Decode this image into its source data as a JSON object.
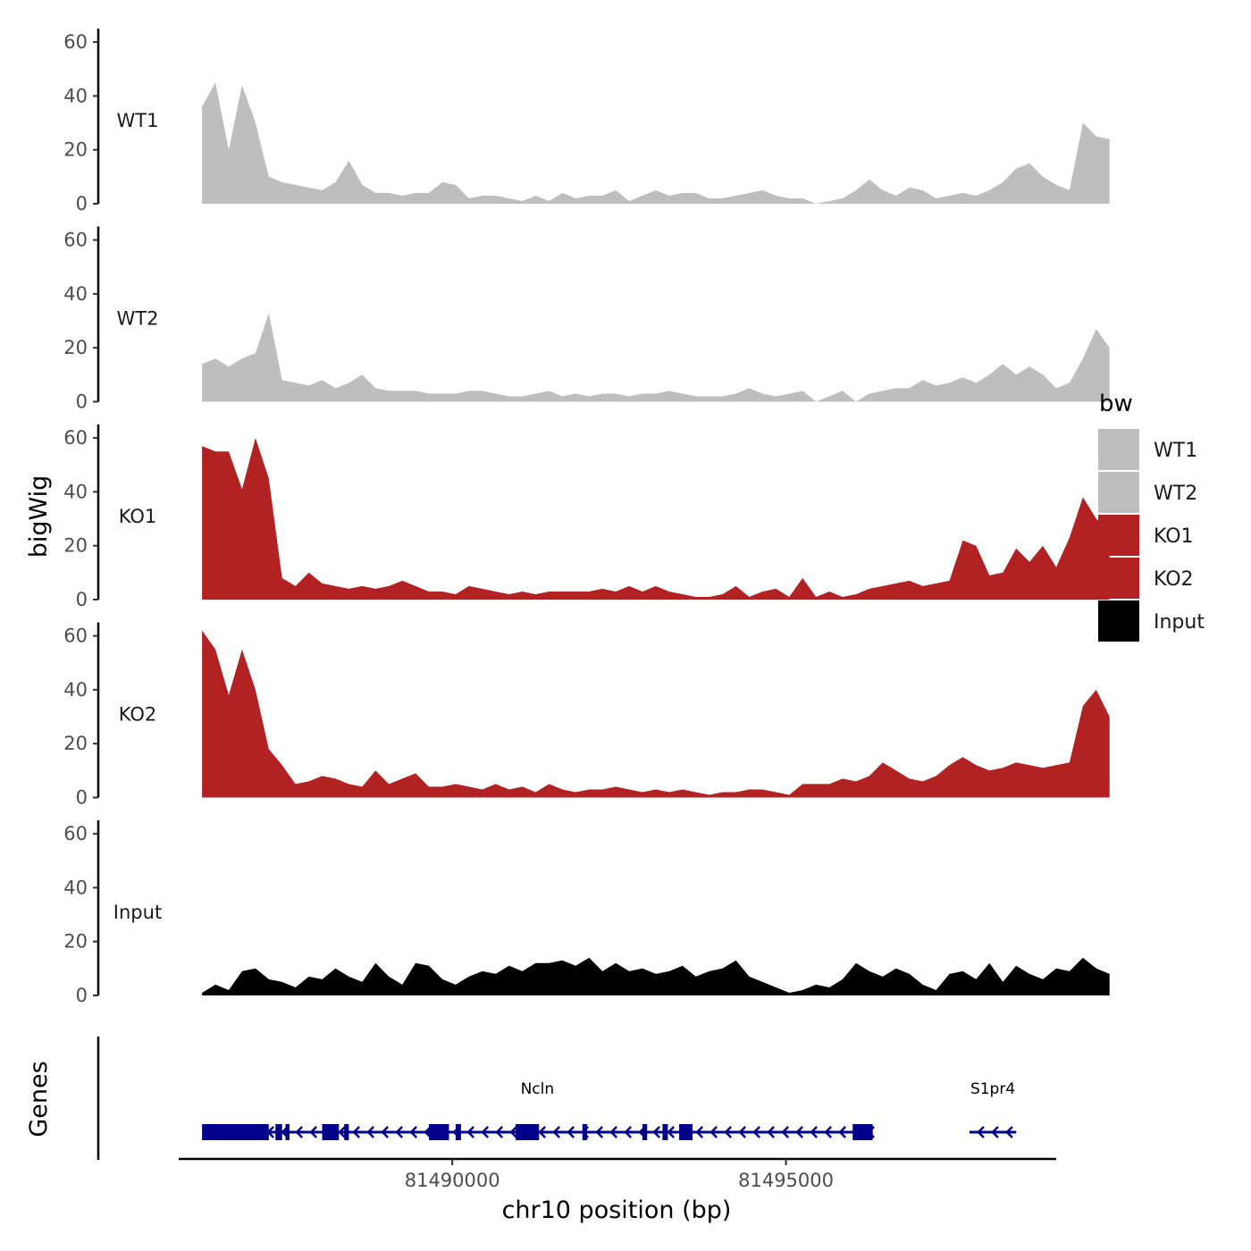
{
  "chart_data": {
    "type": "area",
    "chromosome": "chr10",
    "xlabel": "chr10 position (bp)",
    "ylabel": "bigWig",
    "genes_label": "Genes",
    "xlim": [
      81485900,
      81499050
    ],
    "x_ticks": [
      81490000,
      81495000
    ],
    "x_tick_labels": [
      "81490000",
      "81495000"
    ],
    "ylim": [
      0,
      65
    ],
    "y_ticks": [
      0,
      20,
      40,
      60
    ],
    "grid": false,
    "legend": {
      "title": "bw",
      "position": "right",
      "entries": [
        {
          "label": "WT1",
          "color": "#bebebe"
        },
        {
          "label": "WT2",
          "color": "#bebebe"
        },
        {
          "label": "KO1",
          "color": "#b22222"
        },
        {
          "label": "KO2",
          "color": "#b22222"
        },
        {
          "label": "Input",
          "color": "#000000"
        }
      ]
    },
    "track_x": {
      "start": 81486250,
      "step": 200
    },
    "tracks": [
      {
        "name": "WT1",
        "color": "#bebebe",
        "values": [
          36,
          45,
          20,
          44,
          30,
          10,
          8,
          7,
          6,
          5,
          8,
          16,
          7,
          4,
          4,
          3,
          4,
          4,
          8,
          7,
          2,
          3,
          3,
          2,
          1,
          3,
          1,
          4,
          2,
          3,
          3,
          5,
          1,
          3,
          5,
          3,
          4,
          4,
          2,
          2,
          3,
          4,
          5,
          3,
          2,
          2,
          -1,
          1,
          2,
          5,
          9,
          5,
          3,
          6,
          5,
          2,
          3,
          4,
          3,
          5,
          8,
          13,
          15,
          10,
          7,
          5,
          30,
          25,
          24
        ]
      },
      {
        "name": "WT2",
        "color": "#bebebe",
        "values": [
          14,
          16,
          13,
          16,
          18,
          33,
          8,
          7,
          6,
          8,
          5,
          7,
          10,
          5,
          4,
          4,
          4,
          3,
          3,
          3,
          4,
          4,
          3,
          2,
          2,
          3,
          4,
          2,
          3,
          2,
          3,
          3,
          2,
          3,
          3,
          4,
          3,
          2,
          2,
          2,
          3,
          5,
          3,
          2,
          3,
          4,
          -1,
          2,
          4,
          0,
          3,
          4,
          5,
          5,
          8,
          6,
          7,
          9,
          7,
          10,
          14,
          10,
          13,
          10,
          5,
          7,
          16,
          27,
          20
        ]
      },
      {
        "name": "KO1",
        "color": "#b22222",
        "values": [
          57,
          55,
          55,
          41,
          60,
          45,
          8,
          5,
          10,
          6,
          5,
          4,
          5,
          4,
          5,
          7,
          5,
          3,
          3,
          2,
          5,
          4,
          3,
          2,
          3,
          2,
          3,
          3,
          3,
          3,
          4,
          3,
          5,
          3,
          5,
          3,
          2,
          1,
          1,
          2,
          5,
          1,
          3,
          4,
          1,
          8,
          1,
          3,
          1,
          2,
          4,
          5,
          6,
          7,
          5,
          6,
          7,
          22,
          20,
          9,
          10,
          19,
          14,
          20,
          12,
          23,
          38,
          30,
          25
        ]
      },
      {
        "name": "KO2",
        "color": "#b22222",
        "values": [
          62,
          55,
          38,
          55,
          40,
          18,
          12,
          5,
          6,
          8,
          7,
          5,
          4,
          10,
          5,
          7,
          9,
          4,
          4,
          5,
          4,
          3,
          5,
          3,
          4,
          2,
          5,
          3,
          2,
          3,
          3,
          4,
          3,
          2,
          3,
          2,
          3,
          2,
          1,
          2,
          2,
          3,
          3,
          2,
          1,
          5,
          5,
          5,
          7,
          6,
          8,
          13,
          10,
          7,
          6,
          8,
          12,
          15,
          12,
          10,
          11,
          13,
          12,
          11,
          12,
          13,
          34,
          40,
          30
        ]
      },
      {
        "name": "Input",
        "color": "#000000",
        "values": [
          1,
          4,
          2,
          9,
          10,
          6,
          5,
          3,
          7,
          6,
          10,
          7,
          5,
          12,
          7,
          4,
          12,
          11,
          6,
          4,
          7,
          9,
          8,
          11,
          9,
          12,
          12,
          13,
          11,
          14,
          9,
          12,
          9,
          10,
          8,
          9,
          11,
          7,
          9,
          10,
          13,
          7,
          5,
          3,
          1,
          2,
          4,
          3,
          6,
          12,
          9,
          7,
          10,
          8,
          4,
          2,
          8,
          9,
          6,
          12,
          5,
          11,
          8,
          6,
          10,
          9,
          14,
          10,
          8
        ]
      }
    ],
    "genes": [
      {
        "name": "Ncln",
        "start": 81486250,
        "end": 81496300,
        "strand": "-",
        "exons": [
          [
            81486250,
            81487250
          ],
          [
            81487350,
            81487450
          ],
          [
            81487500,
            81487560
          ],
          [
            81488050,
            81488300
          ],
          [
            81488380,
            81488450
          ],
          [
            81489650,
            81489950
          ],
          [
            81490050,
            81490130
          ],
          [
            81490950,
            81491300
          ],
          [
            81491950,
            81492020
          ],
          [
            81492850,
            81492920
          ],
          [
            81493150,
            81493230
          ],
          [
            81493400,
            81493600
          ],
          [
            81496000,
            81496300
          ]
        ]
      },
      {
        "name": "S1pr4",
        "start": 81497750,
        "end": 81498450,
        "strand": "-",
        "exons": []
      }
    ]
  }
}
